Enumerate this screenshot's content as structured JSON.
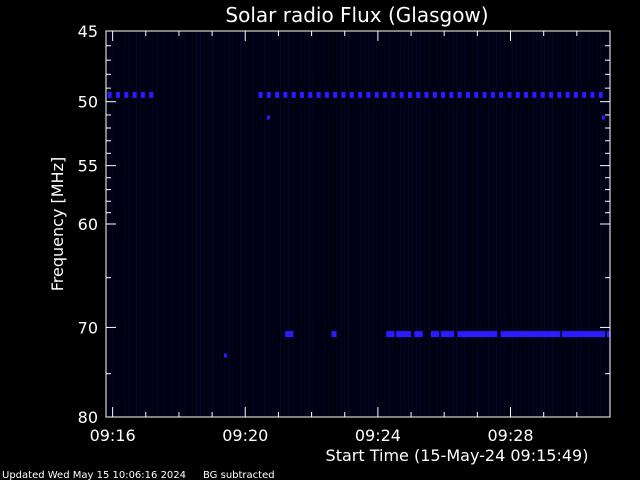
{
  "chart_data": {
    "type": "heatmap",
    "title": "Solar radio Flux (Glasgow)",
    "xlabel": "Start Time (15-May-24 09:15:49)",
    "ylabel": "Frequency [MHz]",
    "x_start": "09:15:49",
    "x_range_minutes": [
      -0.2,
      15.0
    ],
    "y_range_mhz": [
      45,
      80
    ],
    "y_scale": "log",
    "x_ticks": [
      {
        "label": "09:16",
        "minutes": 0
      },
      {
        "label": "09:20",
        "minutes": 4
      },
      {
        "label": "09:24",
        "minutes": 8
      },
      {
        "label": "09:28",
        "minutes": 12
      }
    ],
    "y_ticks": [
      {
        "label": "45",
        "mhz": 45
      },
      {
        "label": "50",
        "mhz": 50
      },
      {
        "label": "55",
        "mhz": 55
      },
      {
        "label": "60",
        "mhz": 60
      },
      {
        "label": "70",
        "mhz": 70
      },
      {
        "label": "80",
        "mhz": 80
      }
    ],
    "y_minor_ticks_mhz": [
      46,
      47,
      48,
      49,
      51,
      52,
      53,
      54,
      56,
      57,
      58,
      59,
      65,
      75
    ],
    "background_color": "#000010",
    "signal_color": "#2a1cff",
    "bands": [
      {
        "frequency_mhz": 49.5,
        "segments_minutes": [
          [
            -0.15,
            1.25
          ],
          [
            4.4,
            14.8
          ]
        ],
        "style": "dashed"
      },
      {
        "frequency_mhz": 70.7,
        "segments_minutes": [
          [
            5.2,
            5.45
          ],
          [
            6.6,
            6.75
          ],
          [
            8.25,
            8.5
          ],
          [
            8.55,
            9.0
          ],
          [
            9.1,
            9.35
          ],
          [
            9.6,
            9.85
          ],
          [
            9.9,
            10.3
          ],
          [
            10.4,
            11.6
          ],
          [
            11.7,
            13.5
          ],
          [
            13.55,
            14.85
          ],
          [
            14.9,
            15.0
          ]
        ],
        "style": "solid"
      }
    ],
    "spots": [
      {
        "minutes": 4.7,
        "mhz": 51.2
      },
      {
        "minutes": 14.8,
        "mhz": 51.2
      },
      {
        "minutes": 3.4,
        "mhz": 73.0
      }
    ]
  },
  "footer": {
    "updated": "Updated Wed May 15 10:06:16 2024",
    "note": "BG subtracted"
  }
}
